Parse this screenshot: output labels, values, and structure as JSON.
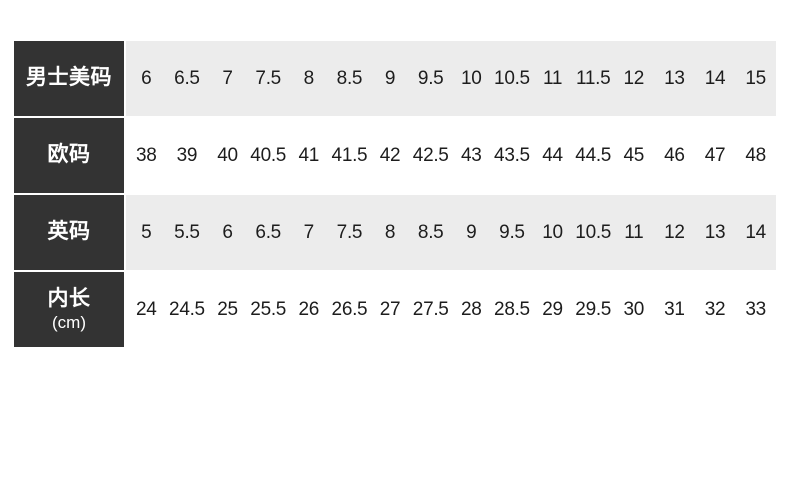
{
  "page": {
    "background": "#ffffff"
  },
  "table": {
    "colors": {
      "header_bg": "#333333",
      "header_text": "#ffffff",
      "stripe_bg": "#ececec",
      "cell_text": "#1d1d1d"
    },
    "rows": [
      {
        "label": "男士美码",
        "label_sub": "",
        "striped": true,
        "values": [
          "6",
          "6.5",
          "7",
          "7.5",
          "8",
          "8.5",
          "9",
          "9.5",
          "10",
          "10.5",
          "11",
          "11.5",
          "12",
          "13",
          "14",
          "15"
        ]
      },
      {
        "label": "欧码",
        "label_sub": "",
        "striped": false,
        "values": [
          "38",
          "39",
          "40",
          "40.5",
          "41",
          "41.5",
          "42",
          "42.5",
          "43",
          "43.5",
          "44",
          "44.5",
          "45",
          "46",
          "47",
          "48"
        ]
      },
      {
        "label": "英码",
        "label_sub": "",
        "striped": true,
        "values": [
          "5",
          "5.5",
          "6",
          "6.5",
          "7",
          "7.5",
          "8",
          "8.5",
          "9",
          "9.5",
          "10",
          "10.5",
          "11",
          "12",
          "13",
          "14"
        ]
      },
      {
        "label": "内长",
        "label_sub": "(cm)",
        "striped": false,
        "values": [
          "24",
          "24.5",
          "25",
          "25.5",
          "26",
          "26.5",
          "27",
          "27.5",
          "28",
          "28.5",
          "29",
          "29.5",
          "30",
          "31",
          "32",
          "33"
        ]
      }
    ]
  },
  "chart_data": {
    "type": "table",
    "columns_count": 16,
    "rows": [
      {
        "label": "男士美码",
        "values": [
          6,
          6.5,
          7,
          7.5,
          8,
          8.5,
          9,
          9.5,
          10,
          10.5,
          11,
          11.5,
          12,
          13,
          14,
          15
        ]
      },
      {
        "label": "欧码",
        "values": [
          38,
          39,
          40,
          40.5,
          41,
          41.5,
          42,
          42.5,
          43,
          43.5,
          44,
          44.5,
          45,
          46,
          47,
          48
        ]
      },
      {
        "label": "英码",
        "values": [
          5,
          5.5,
          6,
          6.5,
          7,
          7.5,
          8,
          8.5,
          9,
          9.5,
          10,
          10.5,
          11,
          12,
          13,
          14
        ]
      },
      {
        "label": "内长(cm)",
        "values": [
          24,
          24.5,
          25,
          25.5,
          26,
          26.5,
          27,
          27.5,
          28,
          28.5,
          29,
          29.5,
          30,
          31,
          32,
          33
        ]
      }
    ],
    "layout": {
      "header_column": "left",
      "row_striping": "alternating-gray-white"
    }
  }
}
